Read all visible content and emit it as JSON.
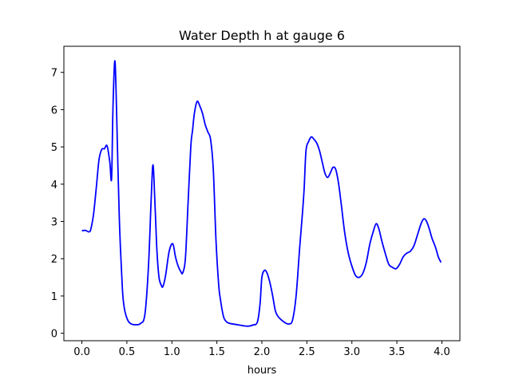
{
  "chart_data": {
    "type": "line",
    "title": "Water Depth h at gauge 6",
    "xlabel": "hours",
    "ylabel": "",
    "xlim": [
      -0.2,
      4.2
    ],
    "ylim": [
      -0.2,
      7.7
    ],
    "xticks": [
      0.0,
      0.5,
      1.0,
      1.5,
      2.0,
      2.5,
      3.0,
      3.5,
      4.0
    ],
    "xtick_labels": [
      "0.0",
      "0.5",
      "1.0",
      "1.5",
      "2.0",
      "2.5",
      "3.0",
      "3.5",
      "4.0"
    ],
    "yticks": [
      0,
      1,
      2,
      3,
      4,
      5,
      6,
      7
    ],
    "ytick_labels": [
      "0",
      "1",
      "2",
      "3",
      "4",
      "5",
      "6",
      "7"
    ],
    "grid": false,
    "series": [
      {
        "color": "#0000ff",
        "x": [
          0.0,
          0.04,
          0.08,
          0.1,
          0.13,
          0.16,
          0.19,
          0.22,
          0.25,
          0.28,
          0.31,
          0.33,
          0.345,
          0.365,
          0.38,
          0.4,
          0.42,
          0.45,
          0.47,
          0.49,
          0.51,
          0.53,
          0.56,
          0.6,
          0.65,
          0.7,
          0.74,
          0.77,
          0.79,
          0.81,
          0.83,
          0.845,
          0.86,
          0.88,
          0.9,
          0.93,
          0.97,
          1.01,
          1.04,
          1.07,
          1.1,
          1.12,
          1.15,
          1.18,
          1.21,
          1.23,
          1.25,
          1.28,
          1.31,
          1.34,
          1.37,
          1.4,
          1.43,
          1.46,
          1.49,
          1.52,
          1.54,
          1.56,
          1.58,
          1.61,
          1.65,
          1.7,
          1.75,
          1.8,
          1.85,
          1.9,
          1.95,
          1.98,
          2.0,
          2.03,
          2.06,
          2.09,
          2.12,
          2.15,
          2.18,
          2.22,
          2.26,
          2.3,
          2.34,
          2.38,
          2.42,
          2.45,
          2.47,
          2.49,
          2.52,
          2.55,
          2.58,
          2.61,
          2.64,
          2.67,
          2.7,
          2.73,
          2.76,
          2.79,
          2.82,
          2.85,
          2.88,
          2.92,
          2.96,
          3.0,
          3.04,
          3.08,
          3.12,
          3.16,
          3.2,
          3.24,
          3.27,
          3.3,
          3.33,
          3.37,
          3.41,
          3.45,
          3.49,
          3.53,
          3.57,
          3.61,
          3.65,
          3.69,
          3.73,
          3.77,
          3.8,
          3.83,
          3.86,
          3.89,
          3.93,
          3.96,
          3.99
        ],
        "y": [
          2.75,
          2.76,
          2.72,
          2.8,
          3.2,
          3.9,
          4.65,
          4.93,
          4.95,
          5.03,
          4.6,
          4.15,
          6.0,
          7.3,
          6.5,
          4.5,
          2.8,
          1.2,
          0.7,
          0.48,
          0.35,
          0.28,
          0.24,
          0.23,
          0.26,
          0.5,
          1.8,
          3.6,
          4.52,
          3.6,
          2.4,
          1.8,
          1.45,
          1.3,
          1.25,
          1.55,
          2.2,
          2.4,
          2.05,
          1.8,
          1.65,
          1.62,
          2.0,
          3.5,
          5.0,
          5.45,
          5.9,
          6.22,
          6.1,
          5.9,
          5.6,
          5.4,
          5.2,
          4.4,
          2.5,
          1.3,
          0.9,
          0.6,
          0.4,
          0.3,
          0.26,
          0.24,
          0.22,
          0.2,
          0.19,
          0.22,
          0.3,
          0.8,
          1.5,
          1.69,
          1.6,
          1.35,
          1.0,
          0.6,
          0.45,
          0.35,
          0.28,
          0.25,
          0.35,
          1.0,
          2.3,
          3.2,
          3.9,
          4.9,
          5.15,
          5.27,
          5.2,
          5.1,
          4.9,
          4.6,
          4.3,
          4.18,
          4.3,
          4.45,
          4.4,
          4.05,
          3.5,
          2.7,
          2.15,
          1.8,
          1.55,
          1.5,
          1.6,
          1.9,
          2.4,
          2.75,
          2.94,
          2.8,
          2.5,
          2.15,
          1.85,
          1.77,
          1.73,
          1.85,
          2.05,
          2.15,
          2.2,
          2.35,
          2.65,
          2.95,
          3.07,
          3.0,
          2.8,
          2.55,
          2.3,
          2.05,
          1.9
        ]
      }
    ]
  }
}
